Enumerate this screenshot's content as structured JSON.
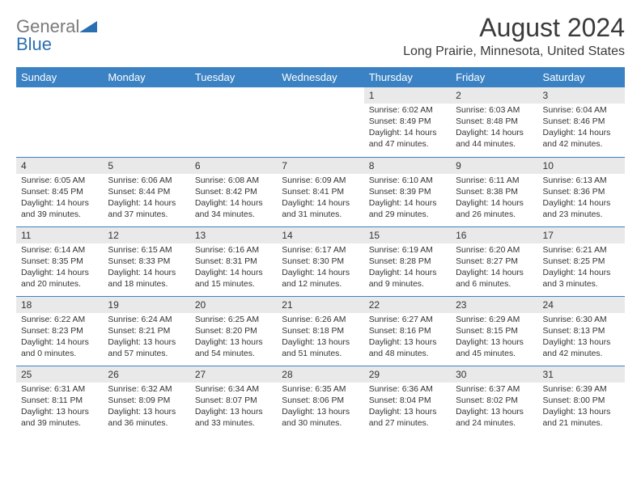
{
  "logo": {
    "gray": "General",
    "blue": "Blue"
  },
  "title": {
    "month": "August 2024",
    "location": "Long Prairie, Minnesota, United States"
  },
  "style": {
    "header_bg": "#3b82c4",
    "header_text": "#ffffff",
    "daynum_bg": "#e9e9e9",
    "row_border": "#3b82c4",
    "body_text": "#333333",
    "title_fontsize": 32,
    "location_fontsize": 16,
    "dayheader_fontsize": 13,
    "cell_fontsize": 10.4
  },
  "day_headers": [
    "Sunday",
    "Monday",
    "Tuesday",
    "Wednesday",
    "Thursday",
    "Friday",
    "Saturday"
  ],
  "labels": {
    "sunrise": "Sunrise: ",
    "sunset": "Sunset: ",
    "daylight": "Daylight: "
  },
  "weeks": [
    [
      null,
      null,
      null,
      null,
      {
        "n": "1",
        "sunrise": "6:02 AM",
        "sunset": "8:49 PM",
        "daylight": "14 hours and 47 minutes."
      },
      {
        "n": "2",
        "sunrise": "6:03 AM",
        "sunset": "8:48 PM",
        "daylight": "14 hours and 44 minutes."
      },
      {
        "n": "3",
        "sunrise": "6:04 AM",
        "sunset": "8:46 PM",
        "daylight": "14 hours and 42 minutes."
      }
    ],
    [
      {
        "n": "4",
        "sunrise": "6:05 AM",
        "sunset": "8:45 PM",
        "daylight": "14 hours and 39 minutes."
      },
      {
        "n": "5",
        "sunrise": "6:06 AM",
        "sunset": "8:44 PM",
        "daylight": "14 hours and 37 minutes."
      },
      {
        "n": "6",
        "sunrise": "6:08 AM",
        "sunset": "8:42 PM",
        "daylight": "14 hours and 34 minutes."
      },
      {
        "n": "7",
        "sunrise": "6:09 AM",
        "sunset": "8:41 PM",
        "daylight": "14 hours and 31 minutes."
      },
      {
        "n": "8",
        "sunrise": "6:10 AM",
        "sunset": "8:39 PM",
        "daylight": "14 hours and 29 minutes."
      },
      {
        "n": "9",
        "sunrise": "6:11 AM",
        "sunset": "8:38 PM",
        "daylight": "14 hours and 26 minutes."
      },
      {
        "n": "10",
        "sunrise": "6:13 AM",
        "sunset": "8:36 PM",
        "daylight": "14 hours and 23 minutes."
      }
    ],
    [
      {
        "n": "11",
        "sunrise": "6:14 AM",
        "sunset": "8:35 PM",
        "daylight": "14 hours and 20 minutes."
      },
      {
        "n": "12",
        "sunrise": "6:15 AM",
        "sunset": "8:33 PM",
        "daylight": "14 hours and 18 minutes."
      },
      {
        "n": "13",
        "sunrise": "6:16 AM",
        "sunset": "8:31 PM",
        "daylight": "14 hours and 15 minutes."
      },
      {
        "n": "14",
        "sunrise": "6:17 AM",
        "sunset": "8:30 PM",
        "daylight": "14 hours and 12 minutes."
      },
      {
        "n": "15",
        "sunrise": "6:19 AM",
        "sunset": "8:28 PM",
        "daylight": "14 hours and 9 minutes."
      },
      {
        "n": "16",
        "sunrise": "6:20 AM",
        "sunset": "8:27 PM",
        "daylight": "14 hours and 6 minutes."
      },
      {
        "n": "17",
        "sunrise": "6:21 AM",
        "sunset": "8:25 PM",
        "daylight": "14 hours and 3 minutes."
      }
    ],
    [
      {
        "n": "18",
        "sunrise": "6:22 AM",
        "sunset": "8:23 PM",
        "daylight": "14 hours and 0 minutes."
      },
      {
        "n": "19",
        "sunrise": "6:24 AM",
        "sunset": "8:21 PM",
        "daylight": "13 hours and 57 minutes."
      },
      {
        "n": "20",
        "sunrise": "6:25 AM",
        "sunset": "8:20 PM",
        "daylight": "13 hours and 54 minutes."
      },
      {
        "n": "21",
        "sunrise": "6:26 AM",
        "sunset": "8:18 PM",
        "daylight": "13 hours and 51 minutes."
      },
      {
        "n": "22",
        "sunrise": "6:27 AM",
        "sunset": "8:16 PM",
        "daylight": "13 hours and 48 minutes."
      },
      {
        "n": "23",
        "sunrise": "6:29 AM",
        "sunset": "8:15 PM",
        "daylight": "13 hours and 45 minutes."
      },
      {
        "n": "24",
        "sunrise": "6:30 AM",
        "sunset": "8:13 PM",
        "daylight": "13 hours and 42 minutes."
      }
    ],
    [
      {
        "n": "25",
        "sunrise": "6:31 AM",
        "sunset": "8:11 PM",
        "daylight": "13 hours and 39 minutes."
      },
      {
        "n": "26",
        "sunrise": "6:32 AM",
        "sunset": "8:09 PM",
        "daylight": "13 hours and 36 minutes."
      },
      {
        "n": "27",
        "sunrise": "6:34 AM",
        "sunset": "8:07 PM",
        "daylight": "13 hours and 33 minutes."
      },
      {
        "n": "28",
        "sunrise": "6:35 AM",
        "sunset": "8:06 PM",
        "daylight": "13 hours and 30 minutes."
      },
      {
        "n": "29",
        "sunrise": "6:36 AM",
        "sunset": "8:04 PM",
        "daylight": "13 hours and 27 minutes."
      },
      {
        "n": "30",
        "sunrise": "6:37 AM",
        "sunset": "8:02 PM",
        "daylight": "13 hours and 24 minutes."
      },
      {
        "n": "31",
        "sunrise": "6:39 AM",
        "sunset": "8:00 PM",
        "daylight": "13 hours and 21 minutes."
      }
    ]
  ]
}
